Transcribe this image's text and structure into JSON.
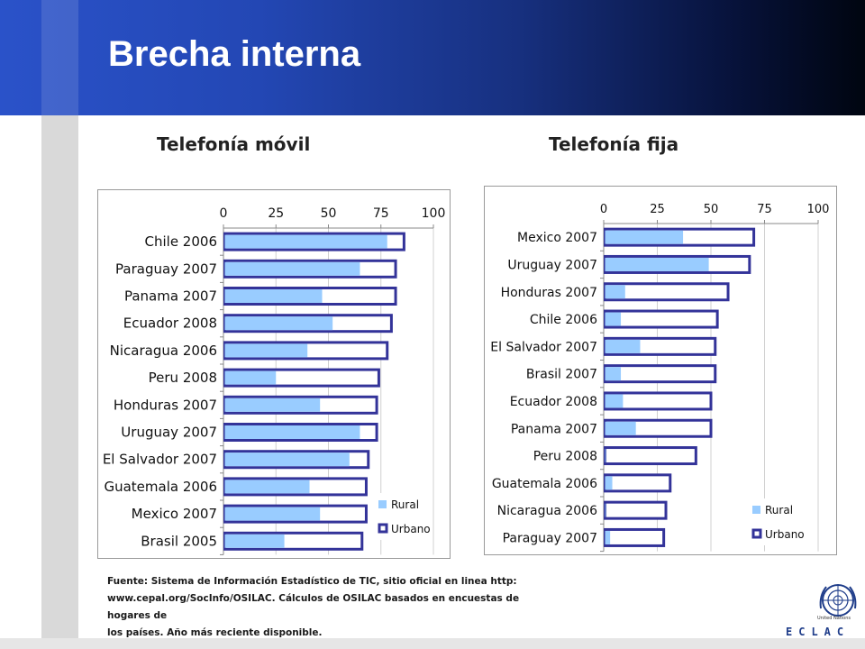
{
  "slide": {
    "title": "Brecha interna",
    "source_line1": "Fuente: Sistema de Información Estadístico de TIC, sitio oficial en linea http:",
    "source_line2": "www.cepal.org/SocInfo/OSILAC. Cálculos de OSILAC basados en encuestas de hogares de",
    "source_line3": "los países. Año más reciente disponible.",
    "logo_caption": "United Nations",
    "logo_text": "ECLAC"
  },
  "colors": {
    "rural": "#99ccff",
    "urbano": "#333399",
    "header_left": "#2a52c9",
    "header_right": "#000510"
  },
  "chart_data": [
    {
      "type": "bar",
      "title": "Telefonía móvil",
      "orientation": "horizontal",
      "categories": [
        "Chile 2006",
        "Paraguay 2007",
        "Panama 2007",
        "Ecuador 2008",
        "Nicaragua 2006",
        "Peru 2008",
        "Honduras 2007",
        "Uruguay 2007",
        "El Salvador 2007",
        "Guatemala 2006",
        "Mexico 2007",
        "Brasil 2005"
      ],
      "series": [
        {
          "name": "Rural",
          "values": [
            78,
            65,
            47,
            52,
            40,
            25,
            46,
            65,
            60,
            41,
            46,
            29
          ]
        },
        {
          "name": "Urbano",
          "values": [
            86,
            82,
            82,
            80,
            78,
            74,
            73,
            73,
            69,
            68,
            68,
            66
          ]
        }
      ],
      "xlim": [
        0,
        100
      ],
      "xticks": [
        "0",
        "25",
        "50",
        "75",
        "100"
      ],
      "legend": "bottom-right"
    },
    {
      "type": "bar",
      "title": "Telefonía fija",
      "orientation": "horizontal",
      "categories": [
        "Mexico 2007",
        "Uruguay 2007",
        "Honduras 2007",
        "Chile 2006",
        "El Salvador 2007",
        "Brasil 2007",
        "Ecuador 2008",
        "Panama 2007",
        "Peru 2008",
        "Guatemala 2006",
        "Nicaragua 2006",
        "Paraguay 2007"
      ],
      "series": [
        {
          "name": "Rural",
          "values": [
            37,
            49,
            10,
            8,
            17,
            8,
            9,
            15,
            1,
            4,
            1,
            3
          ]
        },
        {
          "name": "Urbano",
          "values": [
            70,
            68,
            58,
            53,
            52,
            52,
            50,
            50,
            43,
            31,
            29,
            28
          ]
        }
      ],
      "xlim": [
        0,
        100
      ],
      "xticks": [
        "0",
        "25",
        "50",
        "75",
        "100"
      ],
      "legend": "bottom-right"
    }
  ]
}
